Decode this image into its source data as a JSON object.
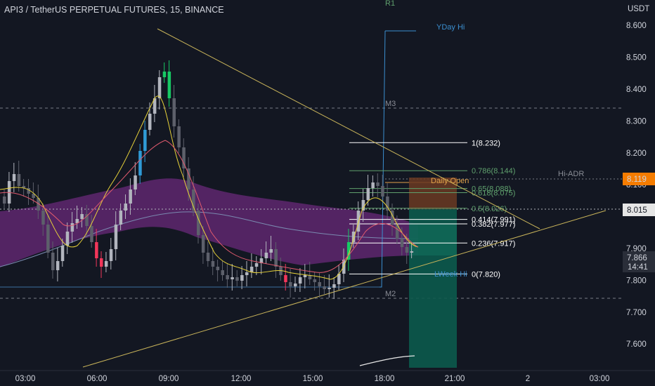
{
  "header": {
    "title": "API3 / TetherUS PERPETUAL FUTURES, 15, BINANCE",
    "currency": "USDT"
  },
  "price_axis": {
    "ticks": [
      "8.600",
      "8.500",
      "8.400",
      "8.300",
      "8.200",
      "8.100",
      "7.900",
      "7.800",
      "7.700",
      "7.600"
    ],
    "tick_values": [
      8.6,
      8.5,
      8.4,
      8.3,
      8.2,
      8.1,
      7.9,
      7.8,
      7.7,
      7.6
    ],
    "badge_orange": "8.119",
    "badge_gray": "8.015",
    "badge_last_price": "7.866",
    "badge_countdown": "14:41"
  },
  "time_axis": {
    "labels": [
      "03:00",
      "06:00",
      "09:00",
      "12:00",
      "15:00",
      "18:00",
      "21:00",
      "2",
      "03:00"
    ]
  },
  "levels": {
    "r1": "R1",
    "m3": "M3",
    "m2": "M2",
    "yday_hi": "YDay Hi",
    "hi_adr": "Hi-ADR",
    "daily_open": "Daily Open",
    "lweek_hi": "LWeek Hi"
  },
  "fib": {
    "levels": [
      {
        "label": "1(8.232)",
        "value": 8.232,
        "color": "#ffffff"
      },
      {
        "label": "0.786(8.144)",
        "value": 8.144,
        "color": "#5fa06d"
      },
      {
        "label": "0.65(8.088)",
        "value": 8.088,
        "color": "#5fa06d"
      },
      {
        "label": "0.618(8.075)",
        "value": 8.075,
        "color": "#5fa06d"
      },
      {
        "label": "0.5(8.026)",
        "value": 8.026,
        "color": "#5fa06d"
      },
      {
        "label": "0.414(7.991)",
        "value": 7.991,
        "color": "#ffffff"
      },
      {
        "label": "0.382(7.977)",
        "value": 7.977,
        "color": "#ffffff"
      },
      {
        "label": "0.236(7.917)",
        "value": 7.917,
        "color": "#ffffff"
      },
      {
        "label": "0(7.820)",
        "value": 7.82,
        "color": "#ffffff"
      }
    ]
  },
  "colors": {
    "background": "#131722",
    "up_candle": "#b2b5be",
    "down_candle": "#5d606b",
    "ribbon": "#7b2f87",
    "fib_green": "#5fa06d",
    "trendline": "#c9b45a",
    "badge_orange": "#f57c00",
    "long_profit": "#0e5e52",
    "long_loss": "#5a3a2a"
  }
}
